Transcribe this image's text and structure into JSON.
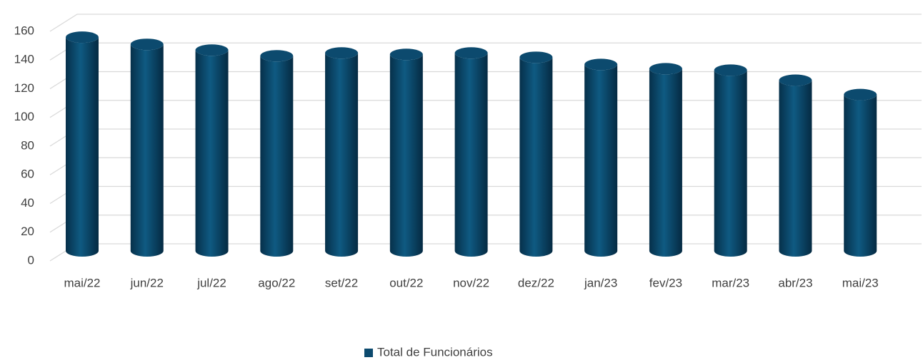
{
  "chart_data": {
    "type": "bar3d",
    "categories": [
      "mai/22",
      "jun/22",
      "jul/22",
      "ago/22",
      "set/22",
      "out/22",
      "nov/22",
      "dez/22",
      "jan/23",
      "fev/23",
      "mar/23",
      "abr/23",
      "mai/23"
    ],
    "series": [
      {
        "name": "Total de Funcionários",
        "color": "#0c4a6e",
        "values": [
          149,
          144,
          140,
          136,
          138,
          137,
          138,
          135,
          130,
          127,
          126,
          119,
          109
        ]
      }
    ],
    "ylim": [
      0,
      160
    ],
    "yticks": [
      0,
      20,
      40,
      60,
      80,
      100,
      120,
      140,
      160
    ],
    "grid": true,
    "legend": "bottom"
  }
}
